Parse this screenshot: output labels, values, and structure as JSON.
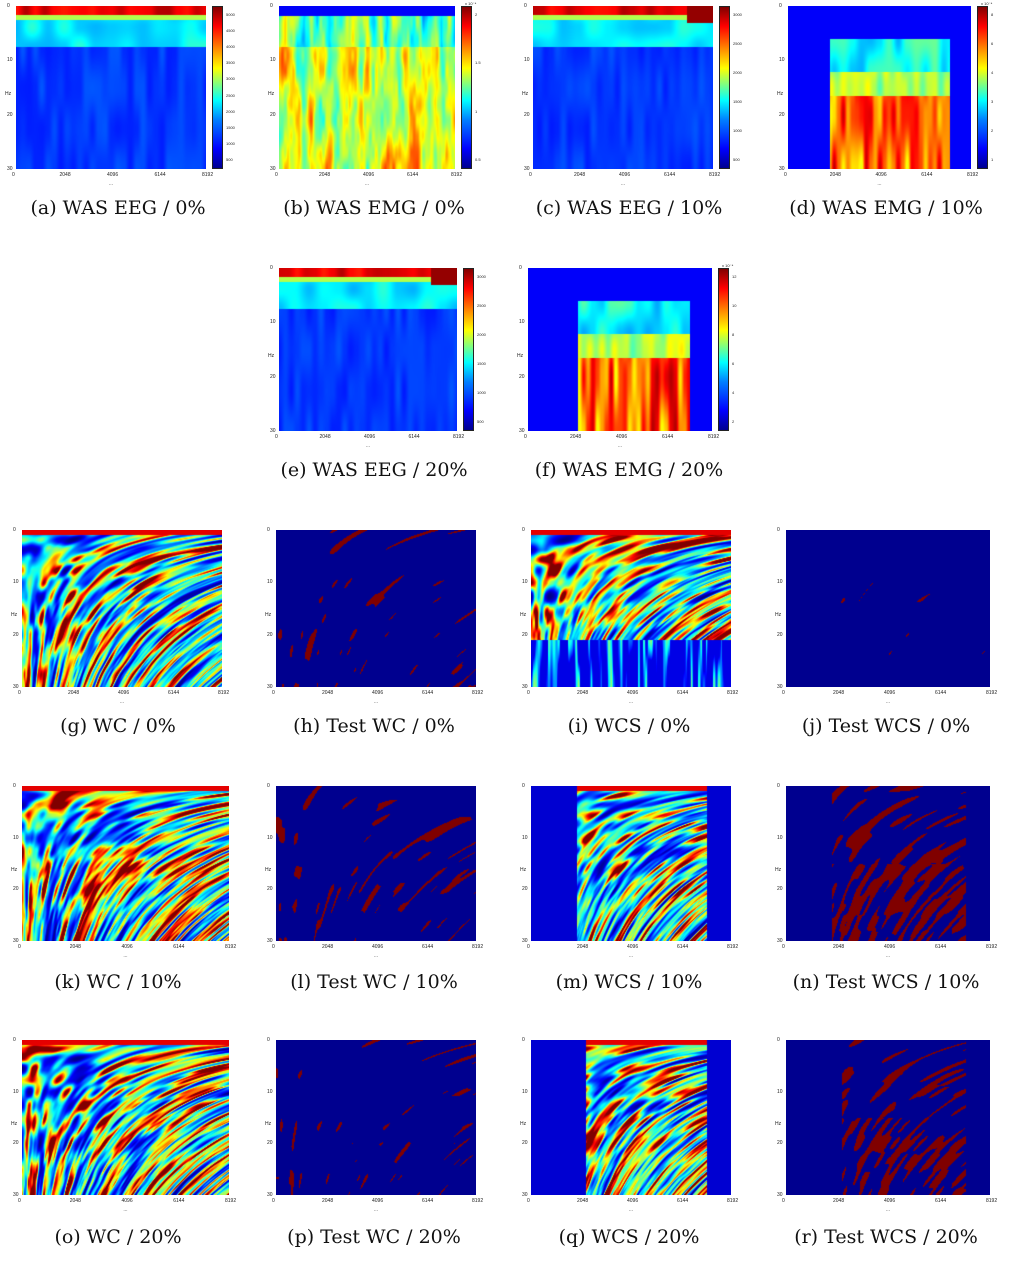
{
  "figure": {
    "y_axis_label": "Hz",
    "x_axis_label": "...",
    "y_ticks": [
      "0",
      "10",
      "20",
      "30"
    ],
    "x_ticks": [
      "0",
      "2048",
      "4096",
      "6144",
      "8192"
    ],
    "panels": [
      {
        "id": "a",
        "caption": "(a)  WAS EEG / 0%",
        "type": "eeg",
        "onset": 0.0,
        "cbar_ticks": [
          "5000",
          "4500",
          "4000",
          "3500",
          "3000",
          "2500",
          "2000",
          "1500",
          "1000",
          "500"
        ],
        "cbar_exp": ""
      },
      {
        "id": "b",
        "caption": "(b)  WAS EMG / 0%",
        "type": "emg0",
        "onset": 0.0,
        "cbar_ticks": [
          "2",
          "1.5",
          "1",
          "0.5"
        ],
        "cbar_exp": "x 10⁻⁴"
      },
      {
        "id": "c",
        "caption": "(c)  WAS EEG / 10%",
        "type": "eeg",
        "onset": 0.1,
        "cbar_ticks": [
          "3000",
          "2500",
          "2000",
          "1500",
          "1000",
          "500"
        ],
        "cbar_exp": ""
      },
      {
        "id": "d",
        "caption": "(d)  WAS EMG / 10%",
        "type": "emg",
        "onset": 0.1,
        "cbar_ticks": [
          "8",
          "6",
          "4",
          "3",
          "2",
          "1"
        ],
        "cbar_exp": "x 10⁻⁴"
      },
      {
        "id": "e",
        "caption": "(e)  WAS EEG / 20%",
        "type": "eeg",
        "onset": 0.2,
        "cbar_ticks": [
          "3000",
          "2500",
          "2000",
          "1500",
          "1000",
          "500"
        ],
        "cbar_exp": ""
      },
      {
        "id": "f",
        "caption": "(f)  WAS EMG / 20%",
        "type": "emg",
        "onset": 0.2,
        "cbar_ticks": [
          "12",
          "10",
          "8",
          "6",
          "4",
          "2"
        ],
        "cbar_exp": "x 10⁻⁴"
      },
      {
        "id": "g",
        "caption": "(g)  WC / 0%",
        "type": "wc",
        "onset": 0.0
      },
      {
        "id": "h",
        "caption": "(h)  Test WC / 0%",
        "type": "test",
        "onset": 0.0
      },
      {
        "id": "i",
        "caption": "(i)  WCS / 0%",
        "type": "wcs",
        "onset": 0.0
      },
      {
        "id": "j",
        "caption": "(j)  Test WCS / 0%",
        "type": "testwcs",
        "onset": 0.0
      },
      {
        "id": "k",
        "caption": "(k)  WC / 10%",
        "type": "wc",
        "onset": 0.1
      },
      {
        "id": "l",
        "caption": "(l)  Test WC / 10%",
        "type": "test",
        "onset": 0.1
      },
      {
        "id": "m",
        "caption": "(m)  WCS / 10%",
        "type": "wcs",
        "onset": 0.1
      },
      {
        "id": "n",
        "caption": "(n)  Test WCS / 10%",
        "type": "testwcs",
        "onset": 0.1
      },
      {
        "id": "o",
        "caption": "(o)  WC / 20%",
        "type": "wc",
        "onset": 0.2
      },
      {
        "id": "p",
        "caption": "(p)  Test WC / 20%",
        "type": "test",
        "onset": 0.2
      },
      {
        "id": "q",
        "caption": "(q)  WCS / 20%",
        "type": "wcs",
        "onset": 0.2
      },
      {
        "id": "r",
        "caption": "(r)  Test WCS / 20%",
        "type": "testwcs",
        "onset": 0.2
      }
    ]
  }
}
